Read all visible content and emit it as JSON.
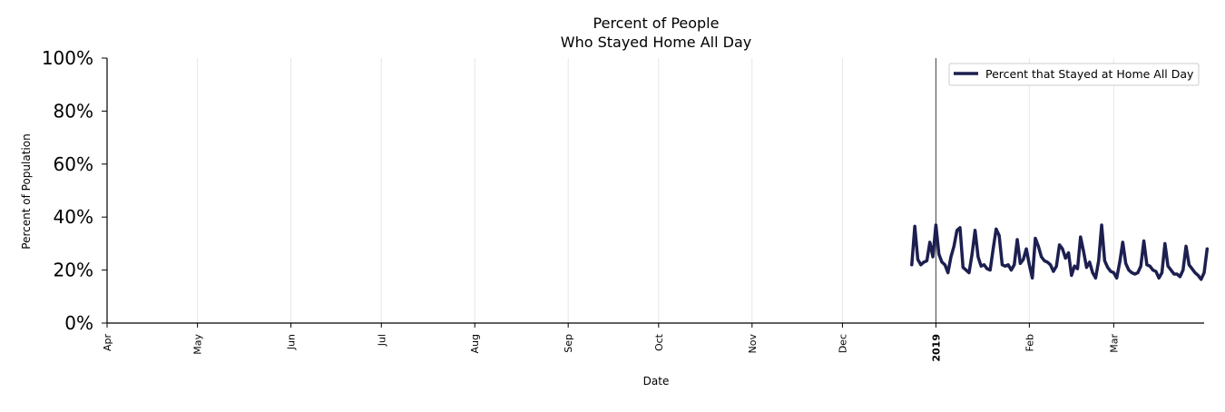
{
  "chart_data": {
    "type": "line",
    "title": [
      "Percent of People",
      "Who Stayed Home All Day"
    ],
    "xlabel": "Date",
    "ylabel": "Percent of Population",
    "xlim": [
      "2018-04-01",
      "2019-03-31"
    ],
    "ylim": [
      0,
      100
    ],
    "y_ticks": [
      0,
      20,
      40,
      60,
      80,
      100
    ],
    "y_tick_labels": [
      "0%",
      "20%",
      "40%",
      "60%",
      "80%",
      "100%"
    ],
    "x_ticks": [
      {
        "date": "2018-04-01",
        "label": "Apr",
        "bold": false
      },
      {
        "date": "2018-05-01",
        "label": "May",
        "bold": false
      },
      {
        "date": "2018-06-01",
        "label": "Jun",
        "bold": false
      },
      {
        "date": "2018-07-01",
        "label": "Jul",
        "bold": false
      },
      {
        "date": "2018-08-01",
        "label": "Aug",
        "bold": false
      },
      {
        "date": "2018-09-01",
        "label": "Sep",
        "bold": false
      },
      {
        "date": "2018-10-01",
        "label": "Oct",
        "bold": false
      },
      {
        "date": "2018-11-01",
        "label": "Nov",
        "bold": false
      },
      {
        "date": "2018-12-01",
        "label": "Dec",
        "bold": false
      },
      {
        "date": "2019-01-01",
        "label": "2019",
        "bold": true
      },
      {
        "date": "2019-02-01",
        "label": "Feb",
        "bold": false
      },
      {
        "date": "2019-03-01",
        "label": "Mar",
        "bold": false
      }
    ],
    "vertical_marker": "2019-01-01",
    "grid": "vertical",
    "legend_position": "top-right",
    "series": [
      {
        "name": "Percent that Stayed at Home All Day",
        "color": "#1c1f4f",
        "points": [
          [
            "2018-12-24",
            22
          ],
          [
            "2018-12-25",
            36.5
          ],
          [
            "2018-12-26",
            24
          ],
          [
            "2018-12-27",
            22
          ],
          [
            "2018-12-28",
            23
          ],
          [
            "2018-12-29",
            23.5
          ],
          [
            "2018-12-30",
            30.5
          ],
          [
            "2018-12-31",
            25
          ],
          [
            "2019-01-01",
            37
          ],
          [
            "2019-01-02",
            26
          ],
          [
            "2019-01-03",
            23
          ],
          [
            "2019-01-04",
            22
          ],
          [
            "2019-01-05",
            19
          ],
          [
            "2019-01-06",
            25
          ],
          [
            "2019-01-07",
            29
          ],
          [
            "2019-01-08",
            35
          ],
          [
            "2019-01-09",
            36
          ],
          [
            "2019-01-10",
            21
          ],
          [
            "2019-01-11",
            20
          ],
          [
            "2019-01-12",
            19
          ],
          [
            "2019-01-13",
            26
          ],
          [
            "2019-01-14",
            35
          ],
          [
            "2019-01-15",
            25
          ],
          [
            "2019-01-16",
            21.5
          ],
          [
            "2019-01-17",
            22
          ],
          [
            "2019-01-18",
            20.5
          ],
          [
            "2019-01-19",
            20
          ],
          [
            "2019-01-20",
            28
          ],
          [
            "2019-01-21",
            35.5
          ],
          [
            "2019-01-22",
            33
          ],
          [
            "2019-01-23",
            22
          ],
          [
            "2019-01-24",
            21.5
          ],
          [
            "2019-01-25",
            22
          ],
          [
            "2019-01-26",
            20
          ],
          [
            "2019-01-27",
            22
          ],
          [
            "2019-01-28",
            31.5
          ],
          [
            "2019-01-29",
            22.5
          ],
          [
            "2019-01-30",
            24
          ],
          [
            "2019-01-31",
            28
          ],
          [
            "2019-02-01",
            22
          ],
          [
            "2019-02-02",
            17
          ],
          [
            "2019-02-03",
            32
          ],
          [
            "2019-02-04",
            29
          ],
          [
            "2019-02-05",
            25
          ],
          [
            "2019-02-06",
            23.5
          ],
          [
            "2019-02-07",
            23
          ],
          [
            "2019-02-08",
            22
          ],
          [
            "2019-02-09",
            19.5
          ],
          [
            "2019-02-10",
            21.5
          ],
          [
            "2019-02-11",
            29.5
          ],
          [
            "2019-02-12",
            28
          ],
          [
            "2019-02-13",
            24.5
          ],
          [
            "2019-02-14",
            26.5
          ],
          [
            "2019-02-15",
            18
          ],
          [
            "2019-02-16",
            21.5
          ],
          [
            "2019-02-17",
            20.5
          ],
          [
            "2019-02-18",
            32.5
          ],
          [
            "2019-02-19",
            27
          ],
          [
            "2019-02-20",
            21
          ],
          [
            "2019-02-21",
            23
          ],
          [
            "2019-02-22",
            19
          ],
          [
            "2019-02-23",
            17
          ],
          [
            "2019-02-24",
            23.5
          ],
          [
            "2019-02-25",
            37
          ],
          [
            "2019-02-26",
            23.5
          ],
          [
            "2019-02-27",
            21
          ],
          [
            "2019-02-28",
            19.5
          ],
          [
            "2019-03-01",
            19
          ],
          [
            "2019-03-02",
            17
          ],
          [
            "2019-03-03",
            23
          ],
          [
            "2019-03-04",
            30.5
          ],
          [
            "2019-03-05",
            22.5
          ],
          [
            "2019-03-06",
            20
          ],
          [
            "2019-03-07",
            19
          ],
          [
            "2019-03-08",
            18.5
          ],
          [
            "2019-03-09",
            19
          ],
          [
            "2019-03-10",
            21.5
          ],
          [
            "2019-03-11",
            31
          ],
          [
            "2019-03-12",
            22
          ],
          [
            "2019-03-13",
            21.5
          ],
          [
            "2019-03-14",
            20
          ],
          [
            "2019-03-15",
            19.5
          ],
          [
            "2019-03-16",
            17
          ],
          [
            "2019-03-17",
            19
          ],
          [
            "2019-03-18",
            30
          ],
          [
            "2019-03-19",
            21.5
          ],
          [
            "2019-03-20",
            20
          ],
          [
            "2019-03-21",
            18.5
          ],
          [
            "2019-03-22",
            18.5
          ],
          [
            "2019-03-23",
            17.5
          ],
          [
            "2019-03-24",
            20
          ],
          [
            "2019-03-25",
            29
          ],
          [
            "2019-03-26",
            22
          ],
          [
            "2019-03-27",
            20.5
          ],
          [
            "2019-03-28",
            19
          ],
          [
            "2019-03-29",
            18
          ],
          [
            "2019-03-30",
            16.5
          ],
          [
            "2019-03-31",
            19
          ],
          [
            "2019-04-01",
            28
          ]
        ]
      }
    ]
  }
}
